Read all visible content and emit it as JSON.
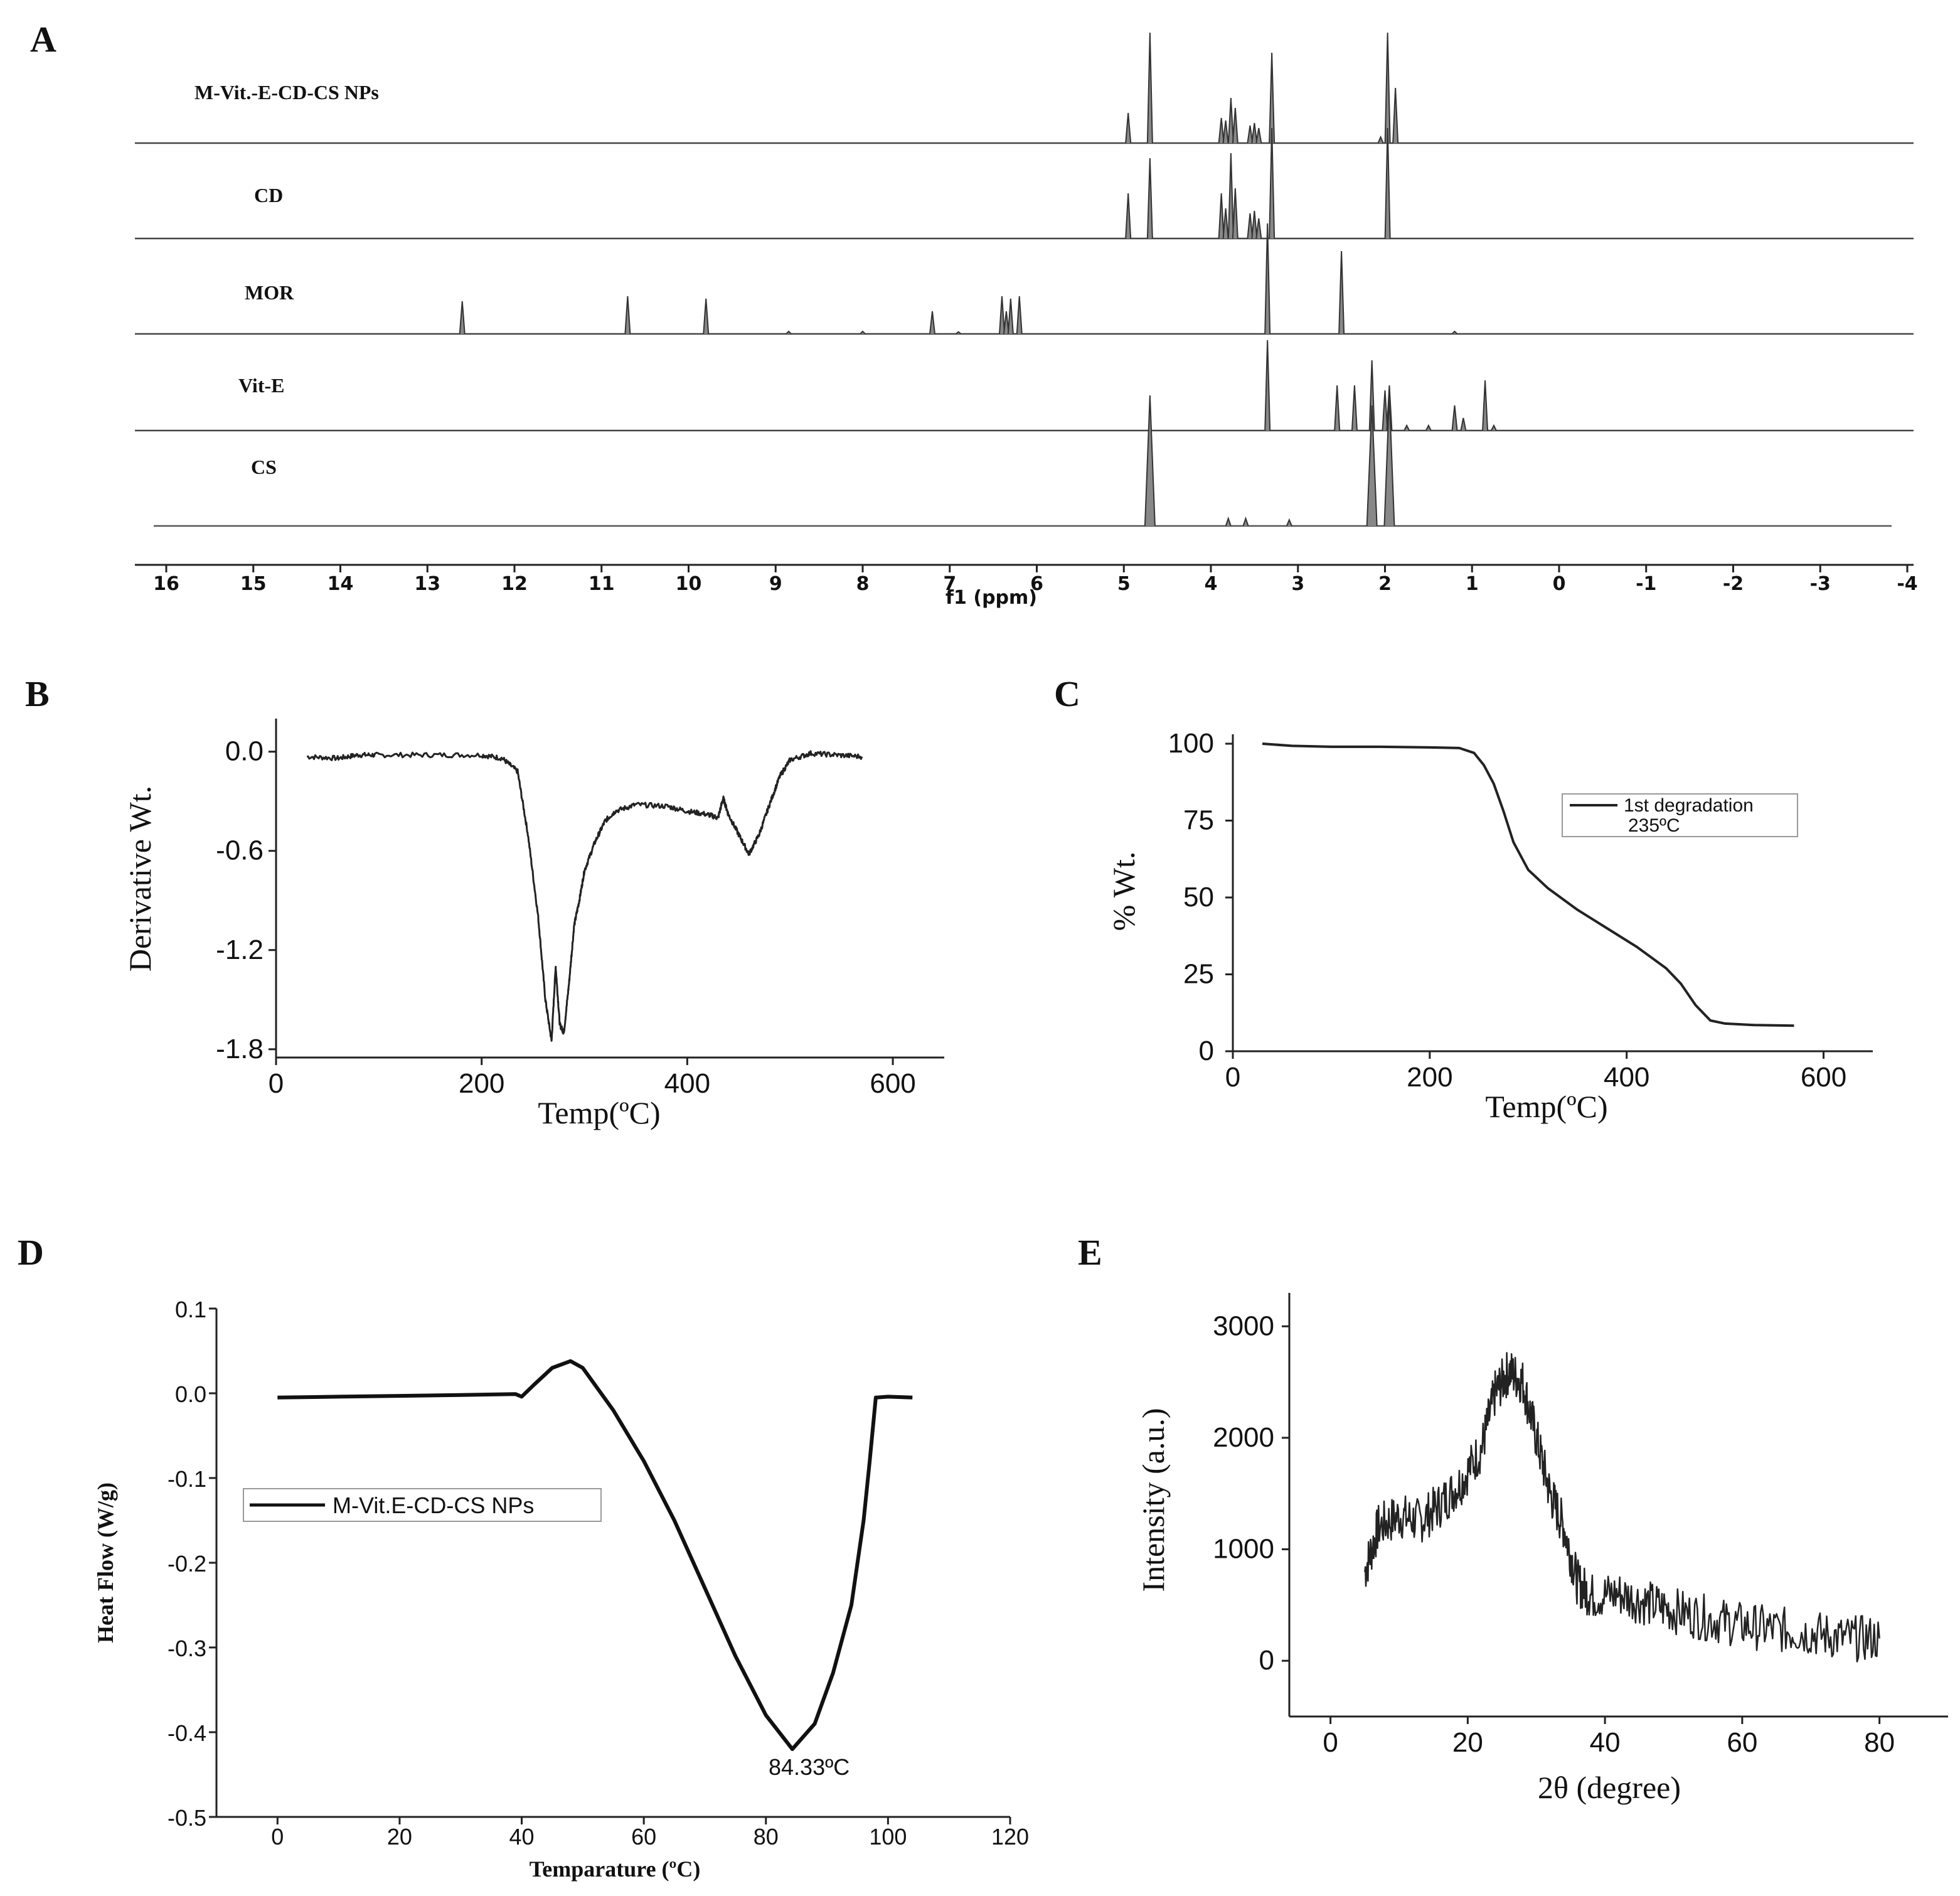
{
  "panels": {
    "A": "A",
    "B": "B",
    "C": "C",
    "D": "D",
    "E": "E"
  },
  "chart_data": [
    {
      "id": "A",
      "type": "line",
      "title": "",
      "xlabel": "f1 (ppm)",
      "ylabel": "",
      "xlim": [
        16,
        -4
      ],
      "ticks": [
        "16",
        "15",
        "14",
        "13",
        "12",
        "11",
        "10",
        "9",
        "8",
        "7",
        "6",
        "5",
        "4",
        "3",
        "2",
        "1",
        "0",
        "-1",
        "-2",
        "-3",
        "-4"
      ],
      "traces": [
        {
          "name": "M-Vit.-E-CD-CS NPs",
          "color": "#444444",
          "peaks": [
            [
              4.95,
              0.6
            ],
            [
              4.7,
              2.2
            ],
            [
              3.88,
              0.5
            ],
            [
              3.83,
              0.45
            ],
            [
              3.77,
              0.9
            ],
            [
              3.72,
              0.7
            ],
            [
              3.55,
              0.35
            ],
            [
              3.5,
              0.4
            ],
            [
              3.45,
              0.3
            ],
            [
              3.3,
              1.8
            ],
            [
              2.05,
              0.12
            ],
            [
              1.97,
              2.2
            ],
            [
              1.88,
              1.1
            ]
          ]
        },
        {
          "name": "CD",
          "color": "#444444",
          "peaks": [
            [
              4.95,
              0.9
            ],
            [
              4.7,
              1.6
            ],
            [
              3.88,
              0.9
            ],
            [
              3.83,
              0.6
            ],
            [
              3.77,
              1.7
            ],
            [
              3.72,
              1.0
            ],
            [
              3.55,
              0.5
            ],
            [
              3.5,
              0.55
            ],
            [
              3.45,
              0.4
            ],
            [
              3.3,
              2.2
            ],
            [
              1.97,
              2.2
            ]
          ]
        },
        {
          "name": "MOR",
          "color": "#444444",
          "peaks": [
            [
              12.6,
              0.65
            ],
            [
              10.7,
              0.75
            ],
            [
              9.8,
              0.7
            ],
            [
              8.85,
              0.05
            ],
            [
              8.0,
              0.05
            ],
            [
              7.2,
              0.45
            ],
            [
              6.9,
              0.04
            ],
            [
              6.4,
              0.75
            ],
            [
              6.35,
              0.45
            ],
            [
              6.3,
              0.7
            ],
            [
              6.2,
              0.75
            ],
            [
              3.35,
              2.2
            ],
            [
              2.5,
              1.65
            ],
            [
              1.2,
              0.05
            ]
          ]
        },
        {
          "name": "Vit-E",
          "color": "#444444",
          "peaks": [
            [
              3.35,
              1.8
            ],
            [
              2.55,
              0.9
            ],
            [
              2.35,
              0.9
            ],
            [
              2.15,
              1.4
            ],
            [
              2.0,
              0.8
            ],
            [
              1.95,
              0.9
            ],
            [
              1.75,
              0.1
            ],
            [
              1.5,
              0.1
            ],
            [
              1.2,
              0.5
            ],
            [
              1.1,
              0.25
            ],
            [
              0.85,
              1.0
            ],
            [
              0.75,
              0.1
            ]
          ]
        },
        {
          "name": "CS",
          "color": "#555555",
          "peaks": [
            [
              4.7,
              2.6
            ],
            [
              3.8,
              0.15
            ],
            [
              3.6,
              0.15
            ],
            [
              3.1,
              0.12
            ],
            [
              2.15,
              2.4
            ],
            [
              1.95,
              2.6
            ]
          ]
        }
      ]
    },
    {
      "id": "B",
      "type": "line",
      "title": "",
      "xlabel": "Temp(ºC)",
      "ylabel": "Derivative Wt.",
      "xlim": [
        0,
        650
      ],
      "ylim": [
        -1.85,
        0.2
      ],
      "xticks": [
        "0",
        "200",
        "400",
        "600"
      ],
      "yticks": [
        "0.0",
        "-0.6",
        "-1.2",
        "-1.8"
      ],
      "x": [
        30,
        60,
        80,
        100,
        150,
        200,
        220,
        235,
        245,
        255,
        262,
        268,
        272,
        276,
        280,
        285,
        290,
        295,
        300,
        310,
        320,
        330,
        350,
        380,
        400,
        420,
        430,
        435,
        440,
        450,
        460,
        470,
        480,
        490,
        500,
        520,
        545,
        570
      ],
      "y": [
        -0.03,
        -0.04,
        -0.02,
        -0.02,
        -0.02,
        -0.02,
        -0.04,
        -0.12,
        -0.5,
        -1.0,
        -1.5,
        -1.75,
        -1.3,
        -1.65,
        -1.7,
        -1.4,
        -1.05,
        -0.9,
        -0.72,
        -0.55,
        -0.42,
        -0.36,
        -0.32,
        -0.33,
        -0.36,
        -0.38,
        -0.4,
        -0.28,
        -0.38,
        -0.5,
        -0.62,
        -0.5,
        -0.32,
        -0.15,
        -0.05,
        -0.01,
        -0.02,
        -0.03
      ]
    },
    {
      "id": "C",
      "type": "line",
      "title": "",
      "xlabel": "Temp(ºC)",
      "ylabel": "% Wt.",
      "xlim": [
        0,
        650
      ],
      "ylim": [
        0,
        100
      ],
      "xticks": [
        "0",
        "200",
        "400",
        "600"
      ],
      "yticks": [
        "0",
        "25",
        "50",
        "75",
        "100"
      ],
      "legend": [
        "1st degradation",
        "235ºC"
      ],
      "x": [
        30,
        60,
        100,
        150,
        200,
        230,
        245,
        255,
        265,
        275,
        285,
        300,
        320,
        350,
        380,
        410,
        440,
        455,
        470,
        485,
        500,
        530,
        570
      ],
      "y": [
        100,
        99.3,
        99,
        99,
        98.8,
        98.6,
        97,
        93,
        87,
        78,
        68,
        59,
        53,
        46,
        40,
        34,
        27,
        22,
        15,
        10,
        9,
        8.5,
        8.3
      ]
    },
    {
      "id": "D",
      "type": "line",
      "title": "",
      "xlabel": "Temparature (ºC)",
      "ylabel": "Heat Flow (W/g)",
      "xlim": [
        -10,
        120
      ],
      "ylim": [
        -0.5,
        0.1
      ],
      "xticks": [
        "0",
        "20",
        "40",
        "60",
        "80",
        "100",
        "120"
      ],
      "yticks": [
        "0.1",
        "0.0",
        "-0.1",
        "-0.2",
        "-0.3",
        "-0.4",
        "-0.5"
      ],
      "legend": "M-Vit.E-CD-CS NPs",
      "annotation": "84.33ºC",
      "x": [
        0,
        10,
        20,
        30,
        39,
        40,
        42,
        45,
        48,
        50,
        55,
        60,
        65,
        70,
        75,
        80,
        84.33,
        88,
        91,
        94,
        96,
        97,
        98,
        100,
        104
      ],
      "y": [
        -0.005,
        -0.004,
        -0.003,
        -0.002,
        -0.001,
        -0.004,
        0.01,
        0.03,
        0.038,
        0.03,
        -0.02,
        -0.08,
        -0.15,
        -0.23,
        -0.31,
        -0.38,
        -0.42,
        -0.39,
        -0.33,
        -0.25,
        -0.15,
        -0.08,
        -0.005,
        -0.004,
        -0.005
      ]
    },
    {
      "id": "E",
      "type": "line",
      "title": "",
      "xlabel": "2θ (degree)",
      "ylabel": "Intensity (a.u.)",
      "xlim": [
        -6,
        90
      ],
      "ylim": [
        -500,
        3300
      ],
      "xticks": [
        "0",
        "20",
        "40",
        "60",
        "80"
      ],
      "yticks": [
        "0",
        "1000",
        "2000",
        "3000"
      ],
      "x": [
        5,
        7,
        10,
        13,
        16,
        19,
        22,
        24,
        26,
        28,
        30,
        32,
        34,
        36,
        38,
        42,
        46,
        50,
        55,
        60,
        65,
        70,
        75,
        80
      ],
      "y": [
        800,
        1200,
        1300,
        1250,
        1400,
        1600,
        1900,
        2400,
        2600,
        2500,
        2000,
        1500,
        1200,
        700,
        580,
        600,
        520,
        450,
        380,
        320,
        280,
        250,
        200,
        200
      ]
    }
  ]
}
